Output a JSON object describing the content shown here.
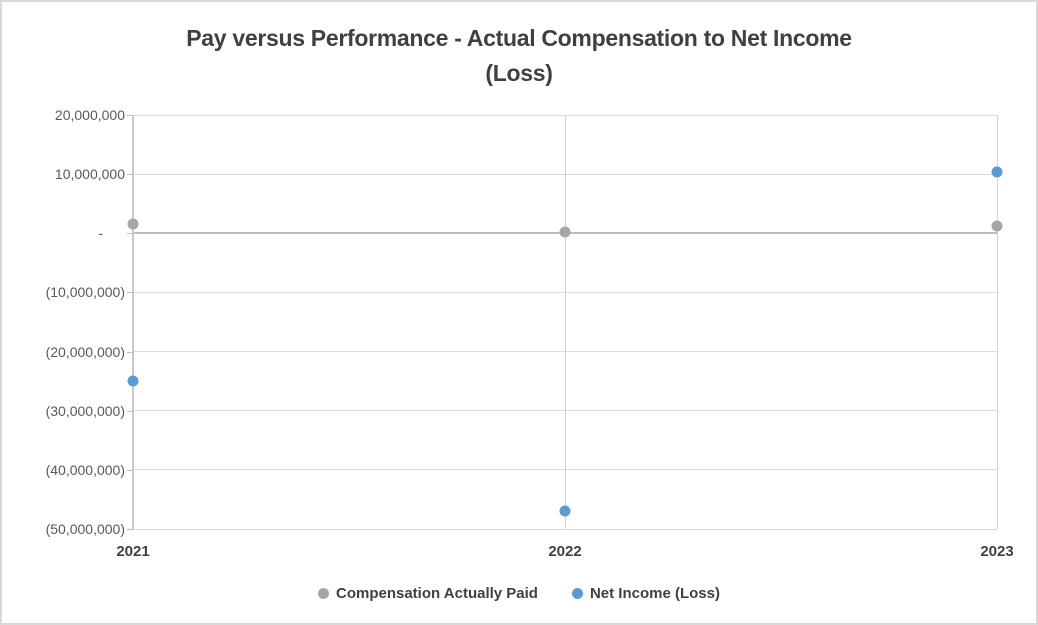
{
  "chart_data": {
    "type": "scatter",
    "title": "Pay versus Performance - Actual Compensation to Net Income (Loss)",
    "title_lines": [
      "Pay versus Performance - Actual Compensation to Net Income",
      "(Loss)"
    ],
    "categories": [
      "2021",
      "2022",
      "2023"
    ],
    "series": [
      {
        "name": "Compensation Actually Paid",
        "marker": "circle",
        "color": "#A6A6A6",
        "values": [
          1500000,
          300000,
          1300000
        ]
      },
      {
        "name": "Net Income (Loss)",
        "marker": "circle",
        "color": "#5B9BD5",
        "values": [
          -24900000,
          -46900000,
          10300000
        ]
      }
    ],
    "ylim": [
      -50000000,
      20000000
    ],
    "ytick_step": 10000000,
    "yticks": [
      {
        "value": 20000000,
        "label": "20,000,000"
      },
      {
        "value": 10000000,
        "label": "10,000,000"
      },
      {
        "value": 0,
        "label": "-"
      },
      {
        "value": -10000000,
        "label": "(10,000,000)"
      },
      {
        "value": -20000000,
        "label": "(20,000,000)"
      },
      {
        "value": -30000000,
        "label": "(30,000,000)"
      },
      {
        "value": -40000000,
        "label": "(40,000,000)"
      },
      {
        "value": -50000000,
        "label": "(50,000,000)"
      }
    ],
    "grid": true,
    "legend_position": "bottom",
    "colors": {
      "gridline": "#DCDCDC",
      "zero_line": "#BDBDBD",
      "axis_line": "#C9C9C9",
      "tick_text": "#595959",
      "title_text": "#404040",
      "category_text": "#404040",
      "legend_text": "#404040",
      "background": "#FFFFFF",
      "frame_border": "#D9D9D9"
    }
  }
}
